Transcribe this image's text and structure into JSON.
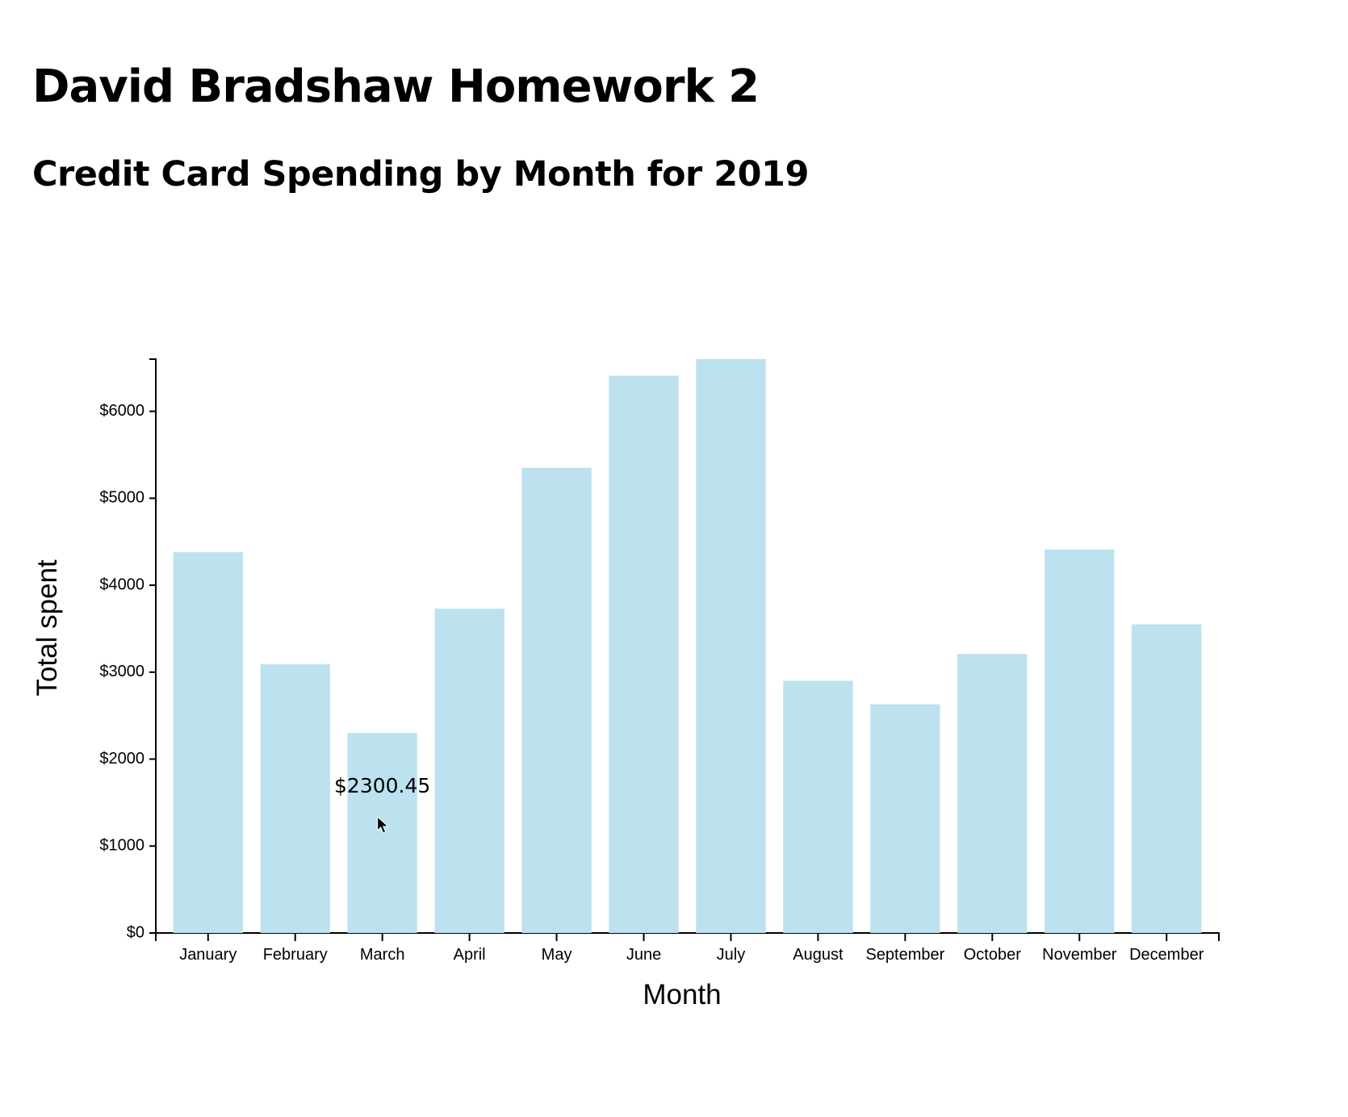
{
  "page": {
    "title": "David Bradshaw Homework 2",
    "chart_heading": "Credit Card Spending by Month for 2019"
  },
  "chart_data": {
    "type": "bar",
    "title": "Credit Card Spending by Month for 2019",
    "xlabel": "Month",
    "ylabel": "Total spent",
    "categories": [
      "January",
      "February",
      "March",
      "April",
      "May",
      "June",
      "July",
      "August",
      "September",
      "October",
      "November",
      "December"
    ],
    "values": [
      4380,
      3090,
      2300.45,
      3730,
      5350,
      6410,
      6600,
      2900,
      2630,
      3210,
      4410,
      3550
    ],
    "ylim": [
      0,
      6600
    ],
    "yticks": [
      0,
      1000,
      2000,
      3000,
      4000,
      5000,
      6000
    ],
    "ytick_labels": [
      "$0",
      "$1000",
      "$2000",
      "$3000",
      "$4000",
      "$5000",
      "$6000"
    ],
    "bar_color": "#bce1ef",
    "grid": false,
    "legend": "none",
    "tooltip": {
      "category": "March",
      "text": "$2300.45",
      "icon": "mouse-cursor-icon"
    }
  }
}
